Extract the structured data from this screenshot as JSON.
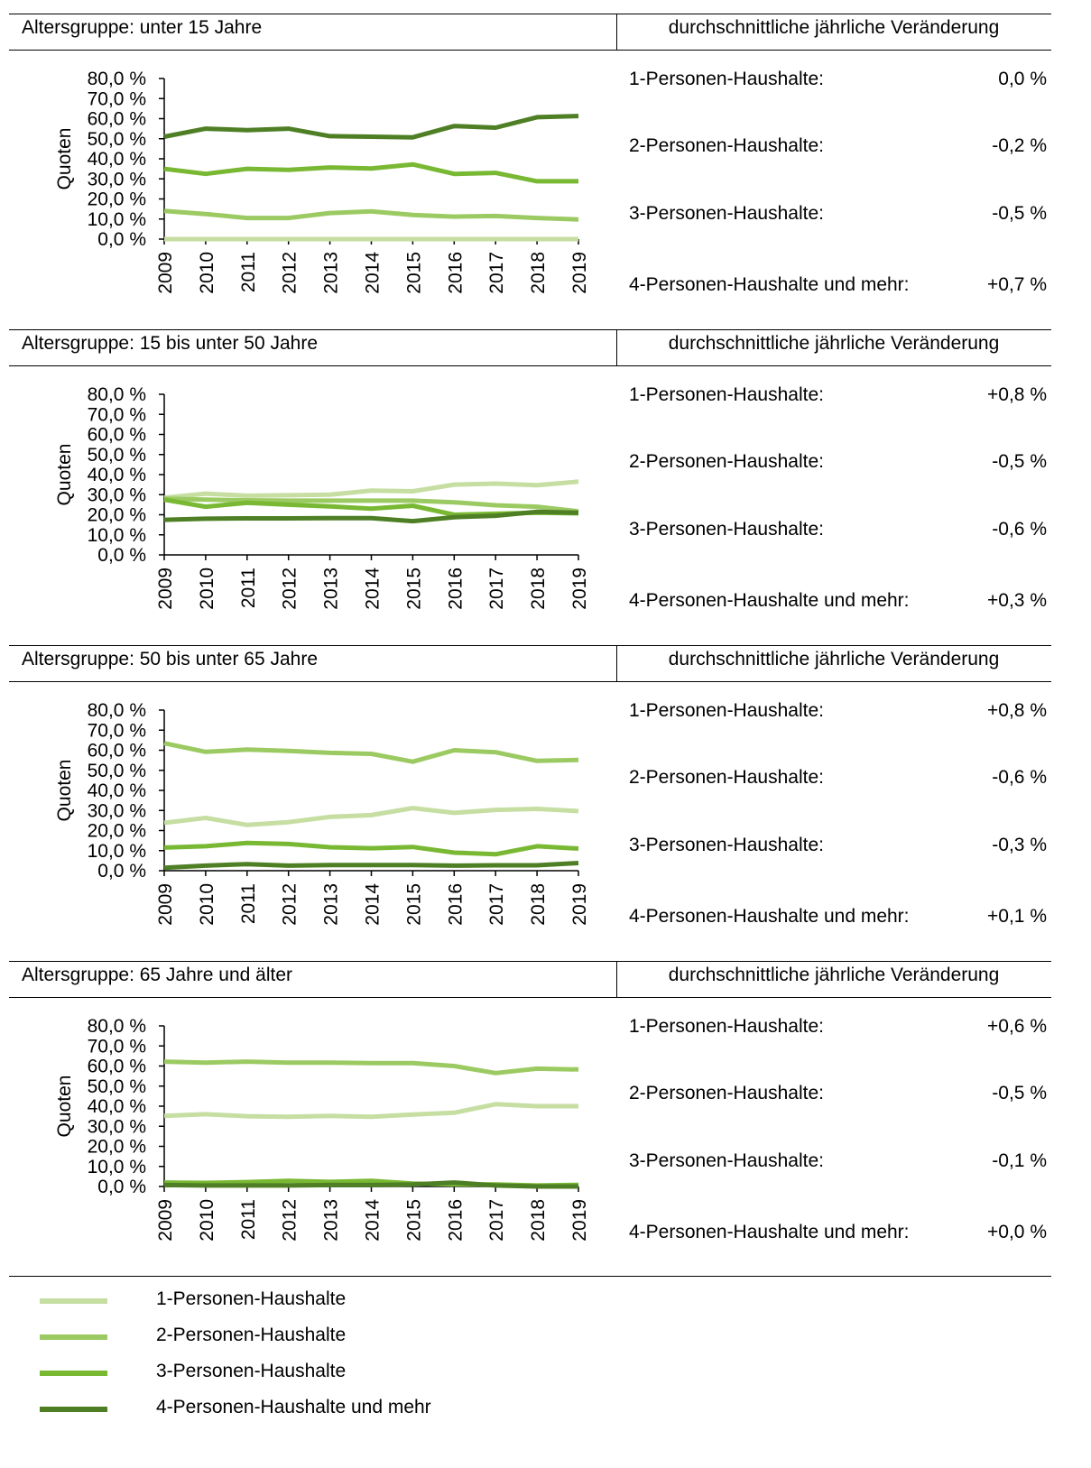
{
  "column_header_right": "durchschnittliche jährliche Veränderung",
  "y_axis_label": "Quoten",
  "colors": [
    "#c6dea2",
    "#9cca62",
    "#78b833",
    "#4e7f25"
  ],
  "legend": [
    {
      "label": "1-Personen-Haushalte"
    },
    {
      "label": "2-Personen-Haushalte"
    },
    {
      "label": "3-Personen-Haushalte"
    },
    {
      "label": "4-Personen-Haushalte und mehr"
    }
  ],
  "panels": [
    {
      "title": "Altersgruppe: unter 15 Jahre",
      "changes": [
        {
          "label": "1-Personen-Haushalte:",
          "value": "0,0 %"
        },
        {
          "label": "2-Personen-Haushalte:",
          "value": "-0,2 %"
        },
        {
          "label": "3-Personen-Haushalte:",
          "value": "-0,5 %"
        },
        {
          "label": "4-Personen-Haushalte und mehr:",
          "value": "+0,7 %"
        }
      ]
    },
    {
      "title": "Altersgruppe: 15 bis unter 50 Jahre",
      "changes": [
        {
          "label": "1-Personen-Haushalte:",
          "value": "+0,8 %"
        },
        {
          "label": "2-Personen-Haushalte:",
          "value": "-0,5 %"
        },
        {
          "label": "3-Personen-Haushalte:",
          "value": "-0,6 %"
        },
        {
          "label": "4-Personen-Haushalte und mehr:",
          "value": "+0,3 %"
        }
      ]
    },
    {
      "title": "Altersgruppe: 50 bis unter 65 Jahre",
      "changes": [
        {
          "label": "1-Personen-Haushalte:",
          "value": "+0,8 %"
        },
        {
          "label": "2-Personen-Haushalte:",
          "value": "-0,6 %"
        },
        {
          "label": "3-Personen-Haushalte:",
          "value": "-0,3 %"
        },
        {
          "label": "4-Personen-Haushalte und mehr:",
          "value": "+0,1 %"
        }
      ]
    },
    {
      "title": "Altersgruppe: 65 Jahre und älter",
      "changes": [
        {
          "label": "1-Personen-Haushalte:",
          "value": "+0,6 %"
        },
        {
          "label": "2-Personen-Haushalte:",
          "value": "-0,5 %"
        },
        {
          "label": "3-Personen-Haushalte:",
          "value": "-0,1 %"
        },
        {
          "label": "4-Personen-Haushalte und mehr:",
          "value": "+0,0 %"
        }
      ]
    }
  ],
  "chart_data": [
    {
      "type": "line",
      "x": [
        "2009",
        "2010",
        "2011",
        "2012",
        "2013",
        "2014",
        "2015",
        "2016",
        "2017",
        "2018",
        "2019"
      ],
      "ylim": [
        0,
        80
      ],
      "yticks": [
        "0,0 %",
        "10,0 %",
        "20,0 %",
        "30,0 %",
        "40,0 %",
        "50,0 %",
        "60,0 %",
        "70,0 %",
        "80,0 %"
      ],
      "ylabel": "Quoten",
      "series": [
        {
          "name": "1-Personen-Haushalte",
          "values": [
            0,
            0,
            0,
            0,
            0,
            0,
            0,
            0,
            0,
            0,
            0
          ]
        },
        {
          "name": "2-Personen-Haushalte",
          "values": [
            14,
            12.5,
            10.5,
            10.5,
            13,
            13.8,
            12,
            11.2,
            11.5,
            10.5,
            9.8
          ]
        },
        {
          "name": "3-Personen-Haushalte",
          "values": [
            35,
            32.5,
            35,
            34.5,
            35.7,
            35.2,
            37.2,
            32.5,
            33,
            28.8,
            28.8
          ]
        },
        {
          "name": "4-Personen-Haushalte und mehr",
          "values": [
            51,
            55,
            54.3,
            55,
            51.3,
            51,
            50.7,
            56.3,
            55.5,
            60.7,
            61.3
          ]
        }
      ]
    },
    {
      "type": "line",
      "x": [
        "2009",
        "2010",
        "2011",
        "2012",
        "2013",
        "2014",
        "2015",
        "2016",
        "2017",
        "2018",
        "2019"
      ],
      "ylim": [
        0,
        80
      ],
      "yticks": [
        "0,0 %",
        "10,0 %",
        "20,0 %",
        "30,0 %",
        "40,0 %",
        "50,0 %",
        "60,0 %",
        "70,0 %",
        "80,0 %"
      ],
      "ylabel": "Quoten",
      "series": [
        {
          "name": "1-Personen-Haushalte",
          "values": [
            28.5,
            30.5,
            29.5,
            29.7,
            30,
            32,
            31.7,
            35,
            35.5,
            34.7,
            36.5
          ]
        },
        {
          "name": "2-Personen-Haushalte",
          "values": [
            28,
            27.5,
            27.2,
            27,
            27,
            27,
            27,
            26.2,
            24.7,
            24,
            21.7
          ]
        },
        {
          "name": "3-Personen-Haushalte",
          "values": [
            27.5,
            24,
            26,
            25,
            24.2,
            23,
            24.5,
            20,
            20.5,
            21,
            20.7
          ]
        },
        {
          "name": "4-Personen-Haushalte und mehr",
          "values": [
            17.5,
            18,
            18.2,
            18.2,
            18.3,
            18.3,
            16.8,
            18.8,
            19.5,
            21.5,
            21
          ]
        }
      ]
    },
    {
      "type": "line",
      "x": [
        "2009",
        "2010",
        "2011",
        "2012",
        "2013",
        "2014",
        "2015",
        "2016",
        "2017",
        "2018",
        "2019"
      ],
      "ylim": [
        0,
        80
      ],
      "yticks": [
        "0,0 %",
        "10,0 %",
        "20,0 %",
        "30,0 %",
        "40,0 %",
        "50,0 %",
        "60,0 %",
        "70,0 %",
        "80,0 %"
      ],
      "ylabel": "Quoten",
      "series": [
        {
          "name": "1-Personen-Haushalte",
          "values": [
            23.8,
            26.3,
            22.8,
            24.2,
            26.8,
            27.7,
            31.2,
            28.8,
            30.3,
            30.8,
            29.7
          ]
        },
        {
          "name": "2-Personen-Haushalte",
          "values": [
            63.5,
            59.2,
            60.3,
            59.7,
            58.7,
            58.2,
            54.3,
            60,
            59,
            54.7,
            55.2
          ]
        },
        {
          "name": "3-Personen-Haushalte",
          "values": [
            11.5,
            12.2,
            13.8,
            13.3,
            11.7,
            11.2,
            11.8,
            9,
            8.2,
            12.2,
            11
          ]
        },
        {
          "name": "4-Personen-Haushalte und mehr",
          "values": [
            1.5,
            2.5,
            3.3,
            2.5,
            2.8,
            2.8,
            2.8,
            2.5,
            2.7,
            2.7,
            3.8
          ]
        }
      ]
    },
    {
      "type": "line",
      "x": [
        "2009",
        "2010",
        "2011",
        "2012",
        "2013",
        "2014",
        "2015",
        "2016",
        "2017",
        "2018",
        "2019"
      ],
      "ylim": [
        0,
        80
      ],
      "yticks": [
        "0,0 %",
        "10,0 %",
        "20,0 %",
        "30,0 %",
        "40,0 %",
        "50,0 %",
        "60,0 %",
        "70,0 %",
        "80,0 %"
      ],
      "ylabel": "Quoten",
      "series": [
        {
          "name": "1-Personen-Haushalte",
          "values": [
            35.2,
            36,
            35,
            34.7,
            35.2,
            34.7,
            35.8,
            36.7,
            41,
            40,
            40
          ]
        },
        {
          "name": "2-Personen-Haushalte",
          "values": [
            62.2,
            61.7,
            62.2,
            61.7,
            61.7,
            61.5,
            61.5,
            60,
            56.5,
            58.7,
            58.3
          ]
        },
        {
          "name": "3-Personen-Haushalte",
          "values": [
            2,
            1.8,
            2.2,
            2.8,
            2.3,
            2.8,
            1.5,
            1,
            1,
            0.5,
            0.8
          ]
        },
        {
          "name": "4-Personen-Haushalte und mehr",
          "values": [
            0.7,
            0.5,
            0.5,
            0.5,
            0.7,
            0.7,
            1,
            2,
            0.5,
            0,
            0
          ]
        }
      ]
    }
  ]
}
